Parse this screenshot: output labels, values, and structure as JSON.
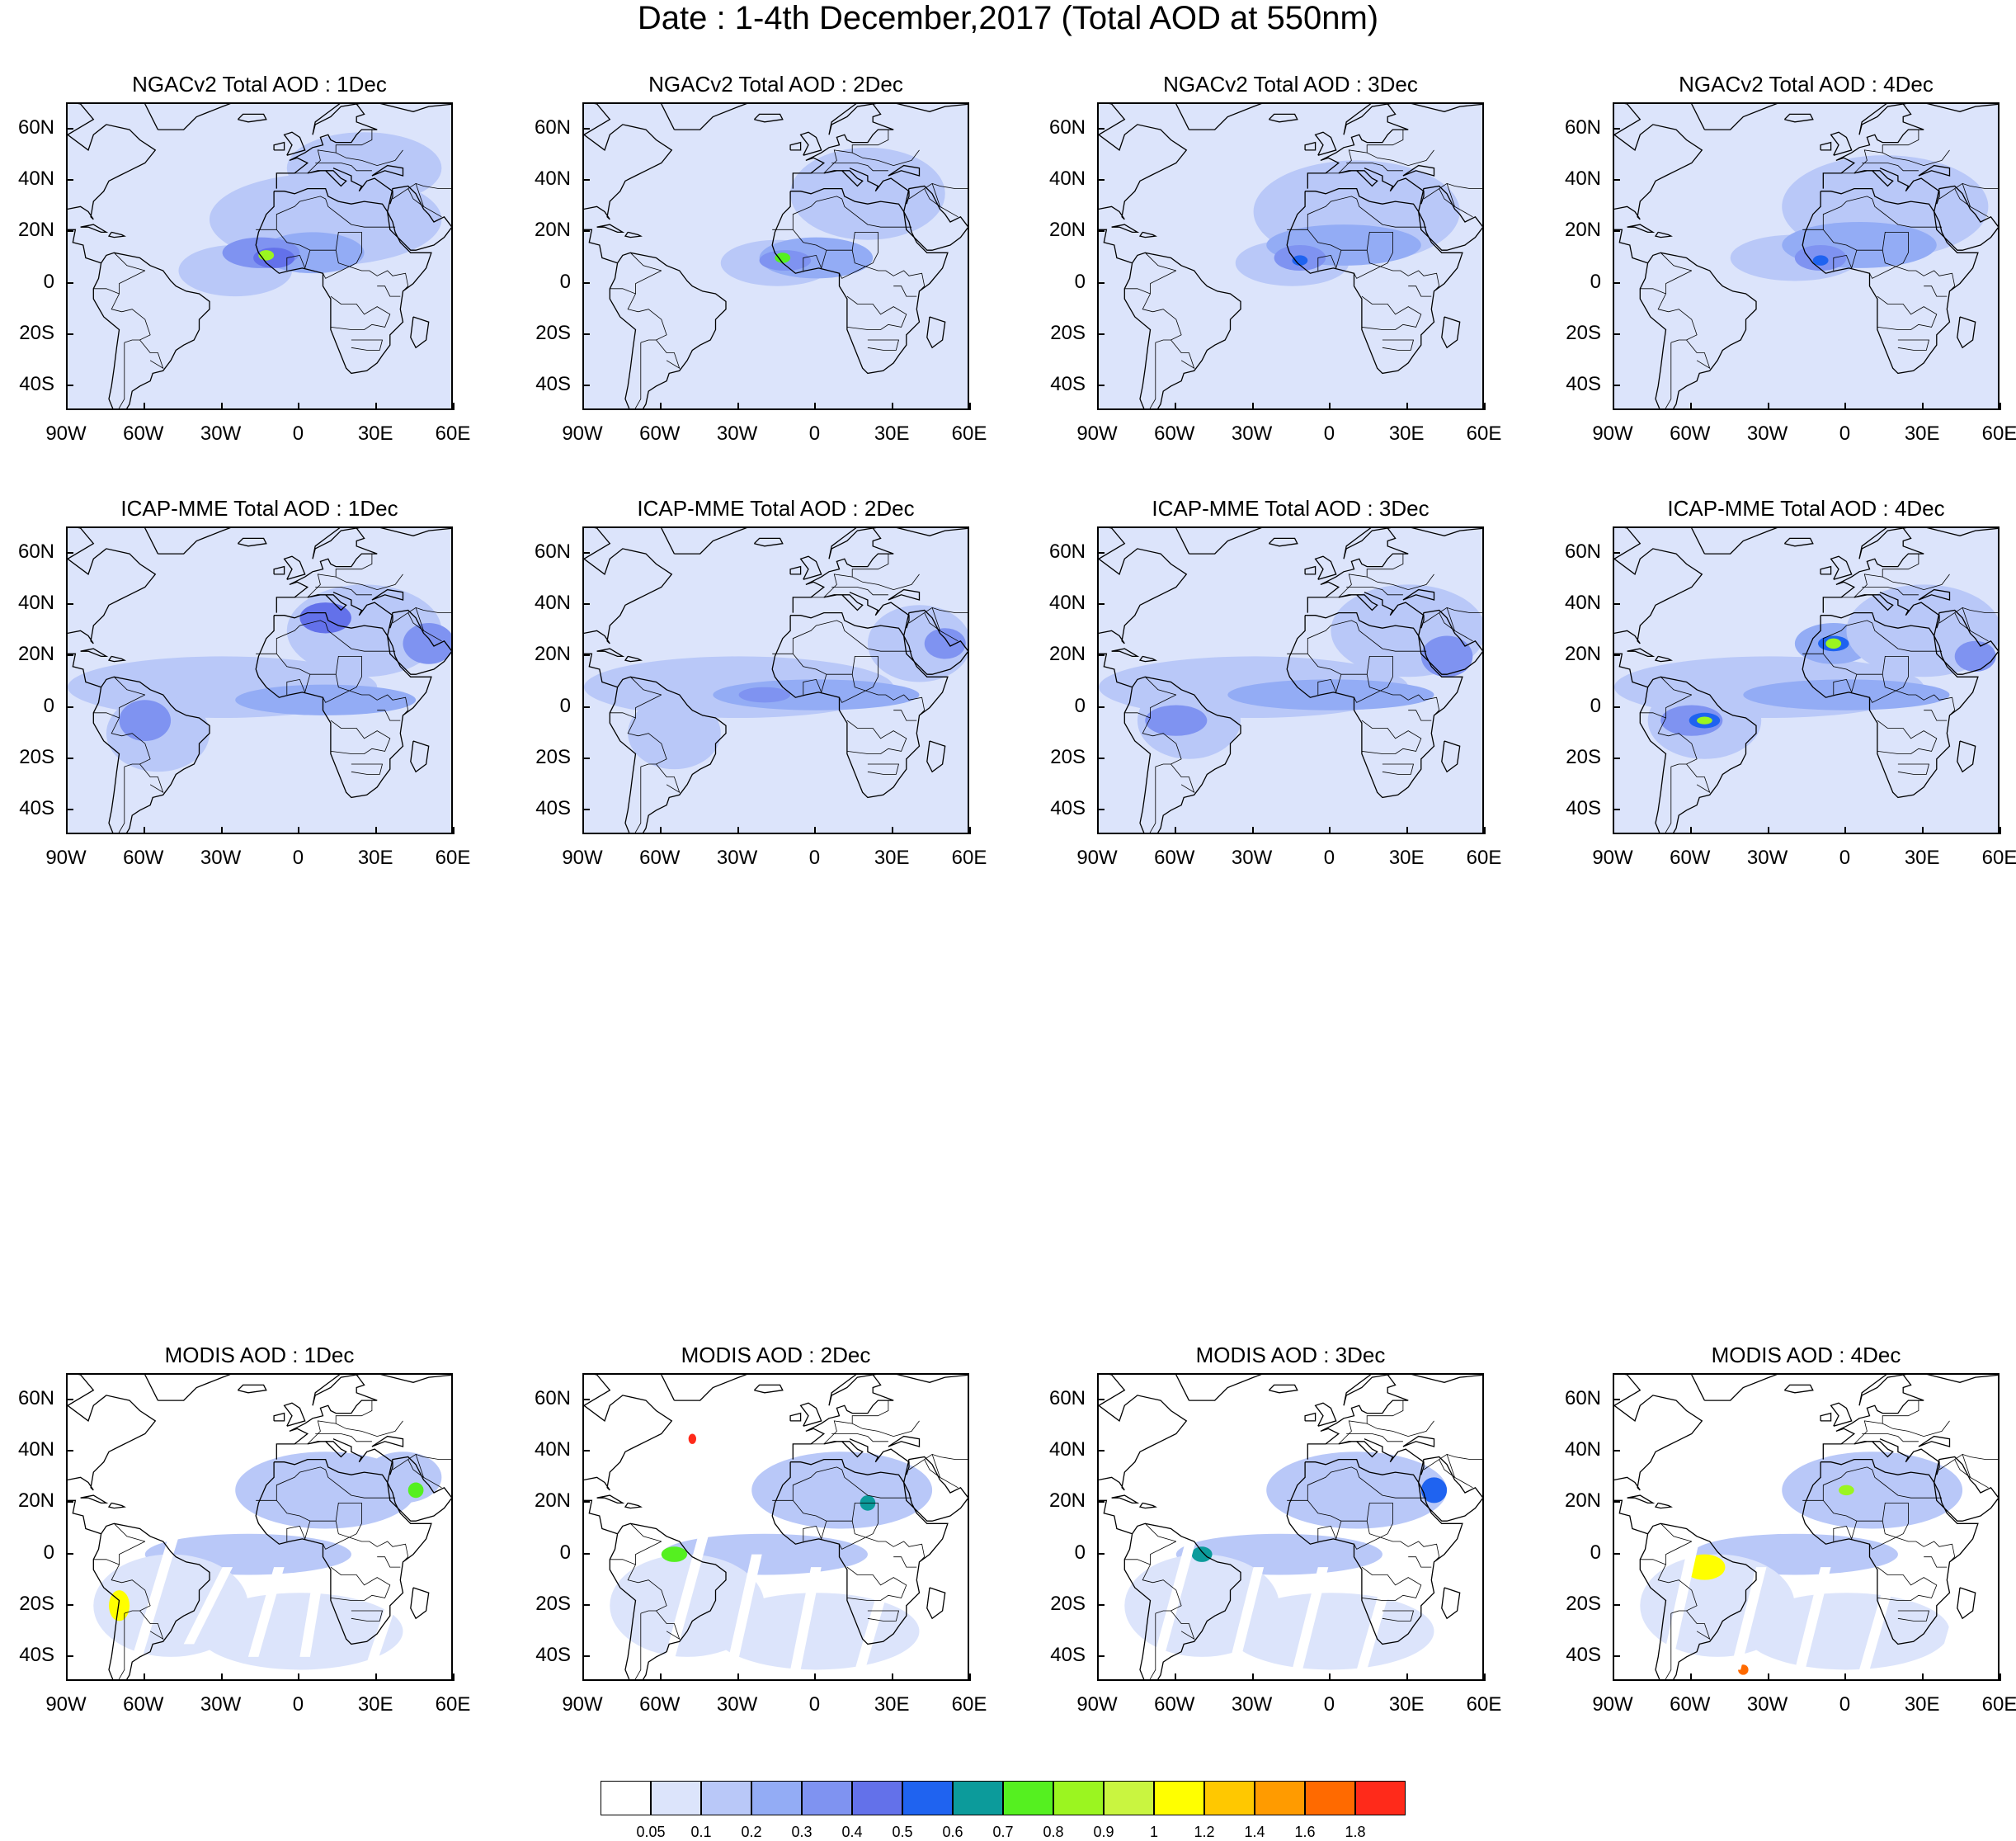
{
  "title": "Date : 1-4th December,2017 (Total AOD at 550nm)",
  "lat_labels": [
    "60N",
    "40N",
    "20N",
    "0",
    "20S",
    "40S"
  ],
  "lon_labels": [
    "90W",
    "60W",
    "30W",
    "0",
    "30E",
    "60E"
  ],
  "extent": {
    "lon": [
      -90,
      60
    ],
    "lat": [
      -50,
      70
    ]
  },
  "rows": [
    {
      "model": "NGACv2",
      "panels": [
        {
          "title": "NGACv2 Total AOD : 1Dec"
        },
        {
          "title": "NGACv2 Total AOD : 2Dec"
        },
        {
          "title": "NGACv2 Total AOD : 3Dec"
        },
        {
          "title": "NGACv2 Total AOD : 4Dec"
        }
      ]
    },
    {
      "model": "ICAP-MME",
      "panels": [
        {
          "title": "ICAP-MME Total AOD : 1Dec"
        },
        {
          "title": "ICAP-MME Total AOD : 2Dec"
        },
        {
          "title": "ICAP-MME Total AOD : 3Dec"
        },
        {
          "title": "ICAP-MME Total AOD : 4Dec"
        }
      ]
    },
    {
      "model": "MODIS",
      "panels": [
        {
          "title": "MODIS AOD : 1Dec"
        },
        {
          "title": "MODIS AOD : 2Dec"
        },
        {
          "title": "MODIS AOD : 3Dec"
        },
        {
          "title": "MODIS AOD : 4Dec"
        }
      ]
    }
  ],
  "colorbar": {
    "labels": [
      "0.05",
      "0.1",
      "0.2",
      "0.3",
      "0.4",
      "0.5",
      "0.6",
      "0.7",
      "0.8",
      "0.9",
      "1",
      "1.2",
      "1.4",
      "1.6",
      "1.8"
    ],
    "colors": [
      "#ffffff",
      "#dce4fb",
      "#b9c8f8",
      "#93acf5",
      "#7f93f1",
      "#6371ea",
      "#1f63f0",
      "#0c9b9b",
      "#55f020",
      "#9bf520",
      "#c9f540",
      "#ffff00",
      "#ffc800",
      "#ff9b00",
      "#ff6a00",
      "#ff2a1a"
    ]
  }
}
